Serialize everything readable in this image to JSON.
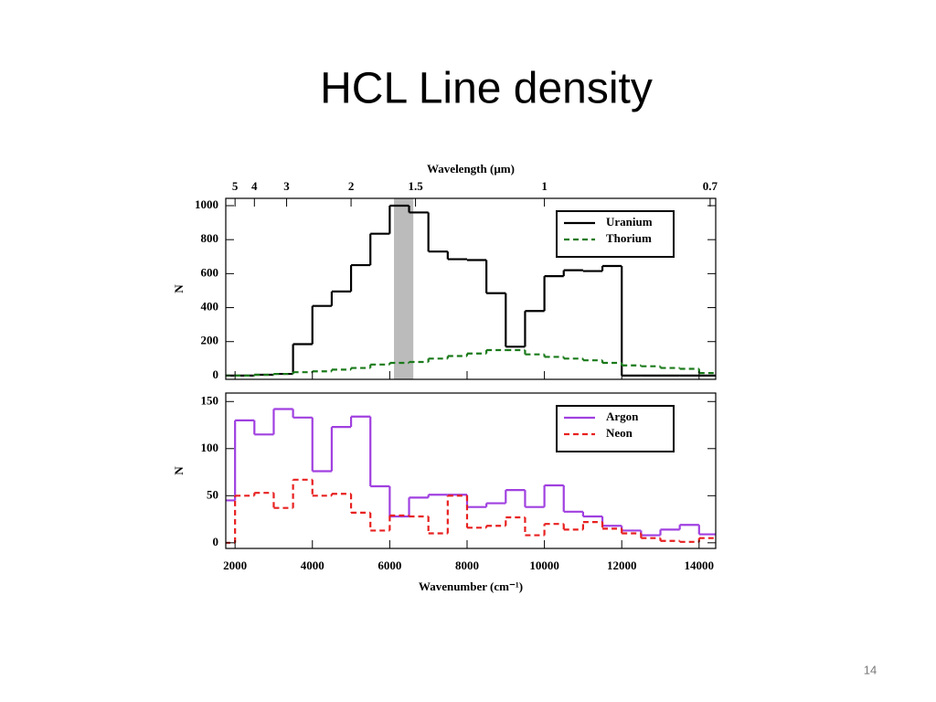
{
  "title": "HCL Line density",
  "page_number": "14",
  "chart_data": [
    {
      "type": "histogram",
      "x2label": "Wavelength (µm)",
      "x2ticks": [
        5,
        4,
        3,
        2,
        1.5,
        1,
        0.7
      ],
      "x2_conversion": 10000,
      "ylabel": "N",
      "bins": [
        1500,
        2000,
        2500,
        3000,
        3500,
        4000,
        4500,
        5000,
        5500,
        6000,
        6500,
        7000,
        7500,
        8000,
        8500,
        9000,
        9500,
        10000,
        10500,
        11000,
        11500,
        12000,
        12500,
        13000,
        13500,
        14000,
        14500
      ],
      "series": [
        {
          "name": "Uranium",
          "color": "#000000",
          "style": "solid",
          "values": [
            0,
            0,
            5,
            10,
            185,
            410,
            495,
            650,
            835,
            1000,
            960,
            730,
            685,
            680,
            485,
            170,
            380,
            585,
            620,
            615,
            645,
            0,
            0,
            0,
            0,
            0
          ]
        },
        {
          "name": "Thorium",
          "color": "#1a7a1a",
          "style": "dashed",
          "values": [
            0,
            0,
            5,
            10,
            20,
            25,
            35,
            45,
            65,
            75,
            80,
            100,
            115,
            130,
            150,
            150,
            125,
            110,
            100,
            90,
            75,
            60,
            55,
            45,
            40,
            15
          ]
        }
      ],
      "highlight": [
        6110,
        6610
      ],
      "xlim": [
        1760,
        14430
      ],
      "ylim": [
        -22,
        1043
      ],
      "yticks": [
        0,
        200,
        400,
        600,
        800,
        1000
      ],
      "legend": "upper right"
    },
    {
      "type": "histogram",
      "xlabel": "Wavenumber (cm⁻¹)",
      "ylabel": "N",
      "bins": [
        1500,
        2000,
        2500,
        3000,
        3500,
        4000,
        4500,
        5000,
        5500,
        6000,
        6500,
        7000,
        7500,
        8000,
        8500,
        9000,
        9500,
        10000,
        10500,
        11000,
        11500,
        12000,
        12500,
        13000,
        13500,
        14000,
        14500
      ],
      "series": [
        {
          "name": "Argon",
          "color": "#a040e0",
          "style": "solid",
          "values": [
            45,
            130,
            115,
            142,
            133,
            76,
            123,
            134,
            60,
            28,
            48,
            51,
            51,
            38,
            42,
            56,
            38,
            61,
            33,
            28,
            18,
            13,
            8,
            14,
            19,
            9
          ]
        },
        {
          "name": "Neon",
          "color": "#e82020",
          "style": "dashed",
          "values": [
            0,
            50,
            53,
            37,
            67,
            50,
            52,
            32,
            13,
            29,
            28,
            10,
            50,
            16,
            18,
            27,
            8,
            20,
            14,
            22,
            15,
            10,
            5,
            2,
            1,
            5
          ]
        }
      ],
      "xlim": [
        1760,
        14430
      ],
      "xticks": [
        2000,
        4000,
        6000,
        8000,
        10000,
        12000,
        14000
      ],
      "ylim": [
        -6,
        159
      ],
      "yticks": [
        0,
        50,
        100,
        150
      ],
      "legend": "upper right"
    }
  ]
}
